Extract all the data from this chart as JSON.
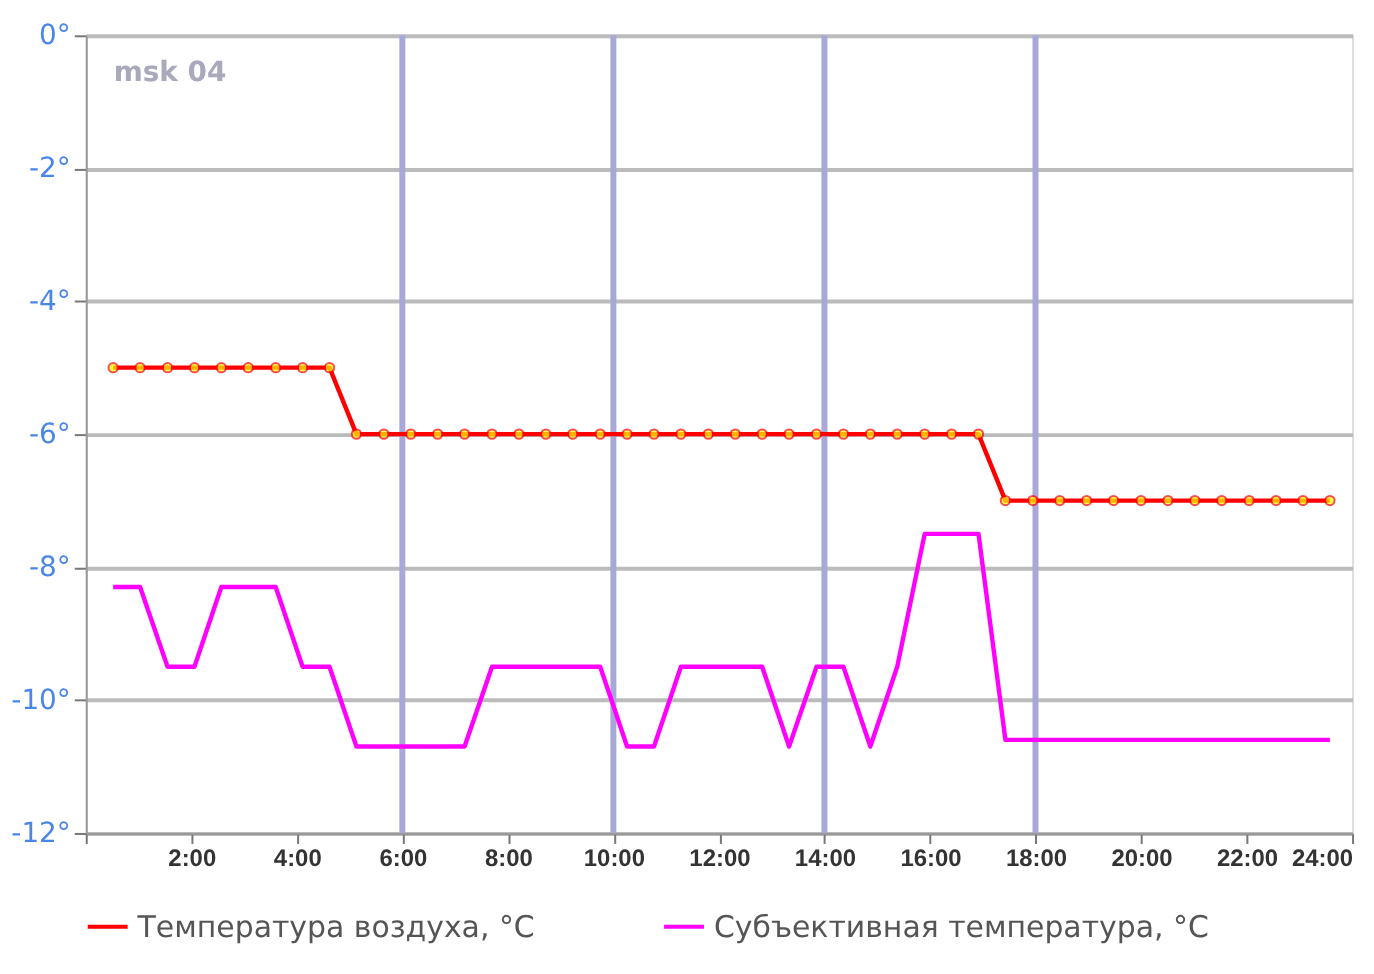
{
  "chart_data": {
    "type": "line",
    "x": [
      0.52,
      1.03,
      1.55,
      2.06,
      2.57,
      3.08,
      3.6,
      4.11,
      4.62,
      5.13,
      5.65,
      6.16,
      6.67,
      7.18,
      7.7,
      8.21,
      8.72,
      9.23,
      9.75,
      10.26,
      10.77,
      11.28,
      11.8,
      12.31,
      12.82,
      13.33,
      13.85,
      14.36,
      14.87,
      15.38,
      15.9,
      16.41,
      16.92,
      17.43,
      17.95,
      18.46,
      18.97,
      19.48,
      20.0,
      20.51,
      21.02,
      21.53,
      22.05,
      22.56,
      23.07,
      23.58
    ],
    "series": [
      {
        "name": "Температура воздуха, °C",
        "color": "#ff0000",
        "marker": "circle",
        "values": [
          -5,
          -5,
          -5,
          -5,
          -5,
          -5,
          -5,
          -5,
          -5,
          -6,
          -6,
          -6,
          -6,
          -6,
          -6,
          -6,
          -6,
          -6,
          -6,
          -6,
          -6,
          -6,
          -6,
          -6,
          -6,
          -6,
          -6,
          -6,
          -6,
          -6,
          -6,
          -6,
          -6,
          -7,
          -7,
          -7,
          -7,
          -7,
          -7,
          -7,
          -7,
          -7,
          -7,
          -7,
          -7,
          -7
        ]
      },
      {
        "name": "Субъективная температура, °C",
        "color": "#ff00ff",
        "marker": "none",
        "values": [
          -8.3,
          -8.3,
          -9.5,
          -9.5,
          -8.3,
          -8.3,
          -8.3,
          -9.5,
          -9.5,
          -10.7,
          -10.7,
          -10.7,
          -10.7,
          -10.7,
          -9.5,
          -9.5,
          -9.5,
          -9.5,
          -9.5,
          -10.7,
          -10.7,
          -9.5,
          -9.5,
          -9.5,
          -9.5,
          -10.7,
          -9.5,
          -9.5,
          -10.7,
          -9.5,
          -7.5,
          -7.5,
          -7.5,
          -10.6,
          -10.6,
          -10.6,
          -10.6,
          -10.6,
          -10.6,
          -10.6,
          -10.6,
          -10.6,
          -10.6,
          -10.6,
          -10.6,
          -10.6
        ]
      }
    ],
    "xlim": [
      0,
      24
    ],
    "xticks": [
      {
        "value": 0,
        "label": null
      },
      {
        "value": 2,
        "label": "2:00"
      },
      {
        "value": 4,
        "label": "4:00"
      },
      {
        "value": 6,
        "label": "6:00"
      },
      {
        "value": 8,
        "label": "8:00"
      },
      {
        "value": 10,
        "label": "10:00"
      },
      {
        "value": 12,
        "label": "12:00"
      },
      {
        "value": 14,
        "label": "14:00"
      },
      {
        "value": 16,
        "label": "16:00"
      },
      {
        "value": 18,
        "label": "18:00"
      },
      {
        "value": 20,
        "label": "20:00"
      },
      {
        "value": 22,
        "label": "22:00"
      },
      {
        "value": 24,
        "label": "24:00"
      }
    ],
    "ylim": [
      -12,
      0
    ],
    "yticks": [
      {
        "value": -12,
        "label": "-12°"
      },
      {
        "value": -10,
        "label": "-10°"
      },
      {
        "value": -8,
        "label": "-8°"
      },
      {
        "value": -6,
        "label": "-6°"
      },
      {
        "value": -4,
        "label": "-4°"
      },
      {
        "value": -2,
        "label": "-2°"
      },
      {
        "value": 0,
        "label": "0°"
      }
    ],
    "ref_lines": [
      {
        "axis": "x",
        "value": 6,
        "color": "#a8a8d8"
      },
      {
        "axis": "x",
        "value": 10,
        "color": "#a8a8d8"
      },
      {
        "axis": "x",
        "value": 14,
        "color": "#a8a8d8"
      },
      {
        "axis": "x",
        "value": 18,
        "color": "#a8a8d8"
      }
    ],
    "annotations": [
      "msk 04"
    ],
    "grid": "y",
    "legend": "bottom",
    "line_style": "solid"
  }
}
